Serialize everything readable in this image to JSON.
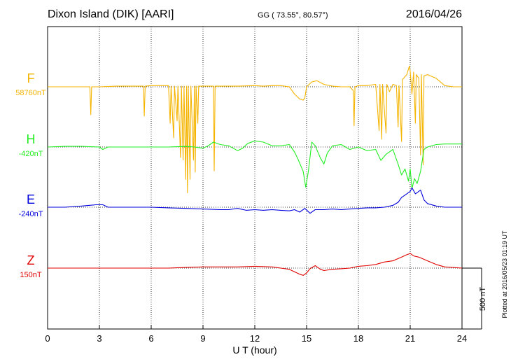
{
  "header": {
    "station": "Dixon Island (DIK)  [AARI]",
    "coords": "GG ( 73.55°,  80.57°)",
    "date": "2016/04/26"
  },
  "side_note": "Plotted at 2016/05/23 01:19 UT",
  "scale_bar_label": "500 nT",
  "colors": {
    "F": "#f5b400",
    "H": "#22ee22",
    "E": "#0000dd",
    "Z": "#e00000"
  },
  "chart_data": {
    "type": "line",
    "xlabel": "U T (hour)",
    "xlim": [
      0,
      24
    ],
    "xticks": [
      0,
      3,
      6,
      9,
      12,
      15,
      18,
      21,
      24
    ],
    "scale_nT": 500,
    "series": [
      {
        "name": "F",
        "baseline_label": "58760nT",
        "color": "#f5b400",
        "points": [
          [
            0,
            0
          ],
          [
            1,
            0
          ],
          [
            2,
            0
          ],
          [
            2.45,
            0
          ],
          [
            2.5,
            -230
          ],
          [
            2.55,
            0
          ],
          [
            3,
            0
          ],
          [
            4,
            5
          ],
          [
            5,
            5
          ],
          [
            5.55,
            5
          ],
          [
            5.6,
            -240
          ],
          [
            5.65,
            5
          ],
          [
            6,
            10
          ],
          [
            7,
            10
          ],
          [
            7.1,
            -300
          ],
          [
            7.15,
            5
          ],
          [
            7.3,
            -420
          ],
          [
            7.35,
            5
          ],
          [
            7.5,
            -280
          ],
          [
            7.55,
            5
          ],
          [
            7.7,
            -580
          ],
          [
            7.75,
            5
          ],
          [
            7.85,
            -600
          ],
          [
            7.9,
            5
          ],
          [
            8,
            -760
          ],
          [
            8.05,
            5
          ],
          [
            8.1,
            -870
          ],
          [
            8.15,
            5
          ],
          [
            8.25,
            -760
          ],
          [
            8.3,
            5
          ],
          [
            8.45,
            -600
          ],
          [
            8.5,
            5
          ],
          [
            8.55,
            -700
          ],
          [
            8.6,
            5
          ],
          [
            8.7,
            -300
          ],
          [
            8.75,
            5
          ],
          [
            9,
            5
          ],
          [
            9.6,
            5
          ],
          [
            9.65,
            -690
          ],
          [
            9.7,
            5
          ],
          [
            10,
            5
          ],
          [
            11,
            5
          ],
          [
            12,
            10
          ],
          [
            12.5,
            5
          ],
          [
            13,
            10
          ],
          [
            13.5,
            10
          ],
          [
            14,
            0
          ],
          [
            14.3,
            -60
          ],
          [
            14.6,
            -100
          ],
          [
            14.8,
            -110
          ],
          [
            14.9,
            -90
          ],
          [
            15,
            0
          ],
          [
            15.3,
            40
          ],
          [
            15.6,
            50
          ],
          [
            16,
            20
          ],
          [
            16.5,
            5
          ],
          [
            17,
            0
          ],
          [
            17.5,
            0
          ],
          [
            17.7,
            -30
          ],
          [
            17.75,
            -320
          ],
          [
            17.8,
            0
          ],
          [
            18,
            10
          ],
          [
            18.5,
            10
          ],
          [
            19,
            20
          ],
          [
            19.2,
            -360
          ],
          [
            19.25,
            20
          ],
          [
            19.35,
            -430
          ],
          [
            19.4,
            20
          ],
          [
            19.6,
            -380
          ],
          [
            19.65,
            20
          ],
          [
            19.8,
            -40
          ],
          [
            20,
            20
          ],
          [
            20.2,
            10
          ],
          [
            20.3,
            -330
          ],
          [
            20.35,
            10
          ],
          [
            20.5,
            -450
          ],
          [
            20.55,
            60
          ],
          [
            20.8,
            100
          ],
          [
            20.95,
            170
          ],
          [
            21,
            130
          ],
          [
            21.1,
            -60
          ],
          [
            21.2,
            120
          ],
          [
            21.3,
            -300
          ],
          [
            21.35,
            100
          ],
          [
            21.5,
            70
          ],
          [
            21.6,
            -560
          ],
          [
            21.65,
            100
          ],
          [
            21.75,
            -640
          ],
          [
            21.8,
            90
          ],
          [
            22,
            100
          ],
          [
            22.5,
            70
          ],
          [
            23,
            10
          ],
          [
            23.5,
            0
          ],
          [
            24,
            0
          ]
        ]
      },
      {
        "name": "H",
        "baseline_label": "-420nT",
        "color": "#22ee22",
        "points": [
          [
            0,
            0
          ],
          [
            1,
            5
          ],
          [
            2,
            5
          ],
          [
            3,
            0
          ],
          [
            3.2,
            -20
          ],
          [
            3.5,
            0
          ],
          [
            4,
            0
          ],
          [
            5,
            0
          ],
          [
            6,
            0
          ],
          [
            7,
            0
          ],
          [
            8,
            5
          ],
          [
            8.5,
            0
          ],
          [
            9,
            -10
          ],
          [
            9.3,
            10
          ],
          [
            9.6,
            40
          ],
          [
            10,
            20
          ],
          [
            10.5,
            10
          ],
          [
            11,
            -30
          ],
          [
            11.3,
            -10
          ],
          [
            11.6,
            30
          ],
          [
            12,
            50
          ],
          [
            12.5,
            40
          ],
          [
            13,
            10
          ],
          [
            13.5,
            10
          ],
          [
            14,
            20
          ],
          [
            14.3,
            -40
          ],
          [
            14.5,
            -100
          ],
          [
            14.8,
            -200
          ],
          [
            14.95,
            -330
          ],
          [
            15.1,
            -200
          ],
          [
            15.3,
            40
          ],
          [
            15.5,
            10
          ],
          [
            15.8,
            -90
          ],
          [
            16,
            -140
          ],
          [
            16.2,
            -50
          ],
          [
            16.5,
            10
          ],
          [
            17,
            20
          ],
          [
            17.5,
            -20
          ],
          [
            18,
            0
          ],
          [
            18.5,
            -30
          ],
          [
            19,
            -20
          ],
          [
            19.3,
            -110
          ],
          [
            19.6,
            -60
          ],
          [
            20,
            -20
          ],
          [
            20.3,
            -140
          ],
          [
            20.5,
            -230
          ],
          [
            20.7,
            -180
          ],
          [
            20.9,
            -280
          ],
          [
            21,
            -180
          ],
          [
            21.1,
            -340
          ],
          [
            21.25,
            -260
          ],
          [
            21.4,
            -300
          ],
          [
            21.6,
            -200
          ],
          [
            21.8,
            -20
          ],
          [
            22,
            0
          ],
          [
            22.5,
            20
          ],
          [
            23,
            25
          ],
          [
            24,
            25
          ]
        ]
      },
      {
        "name": "E",
        "baseline_label": "-240nT",
        "color": "#0000dd",
        "points": [
          [
            0,
            0
          ],
          [
            1,
            0
          ],
          [
            2,
            10
          ],
          [
            2.8,
            20
          ],
          [
            3.2,
            20
          ],
          [
            3.5,
            0
          ],
          [
            4,
            0
          ],
          [
            5,
            0
          ],
          [
            6,
            0
          ],
          [
            7,
            -5
          ],
          [
            8,
            -10
          ],
          [
            9,
            -15
          ],
          [
            10,
            -20
          ],
          [
            10.5,
            -20
          ],
          [
            11,
            -10
          ],
          [
            11.5,
            -25
          ],
          [
            12,
            -20
          ],
          [
            12.5,
            -25
          ],
          [
            13,
            -20
          ],
          [
            13.5,
            -25
          ],
          [
            14,
            -30
          ],
          [
            14.3,
            -20
          ],
          [
            14.6,
            -40
          ],
          [
            14.9,
            -10
          ],
          [
            15.2,
            -50
          ],
          [
            15.5,
            -20
          ],
          [
            16,
            -20
          ],
          [
            16.5,
            -15
          ],
          [
            17,
            -20
          ],
          [
            17.5,
            -15
          ],
          [
            18,
            -10
          ],
          [
            18.5,
            -5
          ],
          [
            19,
            -5
          ],
          [
            19.5,
            0
          ],
          [
            20,
            15
          ],
          [
            20.3,
            40
          ],
          [
            20.5,
            80
          ],
          [
            20.8,
            110
          ],
          [
            21,
            130
          ],
          [
            21.1,
            160
          ],
          [
            21.3,
            110
          ],
          [
            21.6,
            140
          ],
          [
            21.8,
            60
          ],
          [
            22,
            30
          ],
          [
            22.5,
            10
          ],
          [
            23,
            0
          ],
          [
            24,
            0
          ]
        ]
      },
      {
        "name": "Z",
        "baseline_label": "150nT",
        "color": "#e00000",
        "points": [
          [
            0,
            0
          ],
          [
            1,
            0
          ],
          [
            2,
            0
          ],
          [
            3,
            0
          ],
          [
            4,
            0
          ],
          [
            5,
            0
          ],
          [
            6,
            0
          ],
          [
            7,
            0
          ],
          [
            8,
            5
          ],
          [
            9,
            10
          ],
          [
            10,
            10
          ],
          [
            11,
            10
          ],
          [
            12,
            15
          ],
          [
            13,
            10
          ],
          [
            13.5,
            0
          ],
          [
            14,
            -10
          ],
          [
            14.3,
            -30
          ],
          [
            14.6,
            -50
          ],
          [
            14.8,
            -60
          ],
          [
            15,
            -40
          ],
          [
            15.2,
            -5
          ],
          [
            15.5,
            20
          ],
          [
            15.8,
            -10
          ],
          [
            16,
            -20
          ],
          [
            16.5,
            -10
          ],
          [
            17,
            -5
          ],
          [
            17.5,
            0
          ],
          [
            18,
            15
          ],
          [
            18.5,
            20
          ],
          [
            19,
            30
          ],
          [
            19.5,
            50
          ],
          [
            20,
            60
          ],
          [
            20.5,
            90
          ],
          [
            20.8,
            110
          ],
          [
            21,
            120
          ],
          [
            21.2,
            100
          ],
          [
            21.5,
            90
          ],
          [
            22,
            60
          ],
          [
            22.5,
            30
          ],
          [
            23,
            10
          ],
          [
            24,
            0
          ]
        ]
      }
    ]
  }
}
